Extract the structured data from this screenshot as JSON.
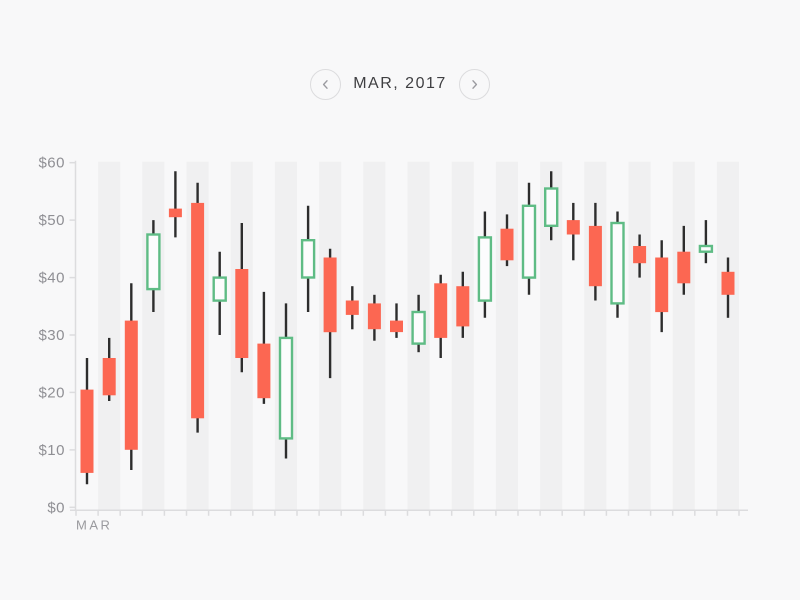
{
  "header": {
    "title": "MAR, 2017",
    "prev_icon": "chevron-left",
    "next_icon": "chevron-right"
  },
  "chart_data": {
    "type": "candlestick",
    "title": "MAR, 2017",
    "xlabel": "MAR",
    "ylabel": "",
    "ylim": [
      0,
      60
    ],
    "y_tick_values": [
      0,
      10,
      20,
      30,
      40,
      50,
      60
    ],
    "y_tick_labels": [
      "$0",
      "$10",
      "$20",
      "$30",
      "$40",
      "$50",
      "$60"
    ],
    "x_axis_label": "MAR",
    "grid": "alternating-vertical-stripes",
    "legend": "none",
    "candles": [
      {
        "open": 20.5,
        "high": 26,
        "low": 4,
        "close": 6
      },
      {
        "open": 26,
        "high": 29.5,
        "low": 18.5,
        "close": 19.5
      },
      {
        "open": 32.5,
        "high": 39,
        "low": 6.5,
        "close": 10
      },
      {
        "open": 38,
        "high": 50,
        "low": 34,
        "close": 47.5
      },
      {
        "open": 52,
        "high": 58.5,
        "low": 47,
        "close": 50.5
      },
      {
        "open": 53,
        "high": 56.5,
        "low": 13,
        "close": 15.5
      },
      {
        "open": 36,
        "high": 44.5,
        "low": 30,
        "close": 40
      },
      {
        "open": 41.5,
        "high": 49.5,
        "low": 23.5,
        "close": 26
      },
      {
        "open": 28.5,
        "high": 37.5,
        "low": 18,
        "close": 19
      },
      {
        "open": 12,
        "high": 35.5,
        "low": 8.5,
        "close": 29.5
      },
      {
        "open": 40,
        "high": 52.5,
        "low": 34,
        "close": 46.5
      },
      {
        "open": 43.5,
        "high": 45,
        "low": 22.5,
        "close": 30.5
      },
      {
        "open": 36,
        "high": 38.5,
        "low": 31,
        "close": 33.5
      },
      {
        "open": 35.5,
        "high": 37,
        "low": 29,
        "close": 31
      },
      {
        "open": 32.5,
        "high": 35.5,
        "low": 29.5,
        "close": 30.5
      },
      {
        "open": 28.5,
        "high": 37,
        "low": 27,
        "close": 34
      },
      {
        "open": 39,
        "high": 40.5,
        "low": 26,
        "close": 29.5
      },
      {
        "open": 38.5,
        "high": 41,
        "low": 29.5,
        "close": 31.5
      },
      {
        "open": 36,
        "high": 51.5,
        "low": 33,
        "close": 47
      },
      {
        "open": 48.5,
        "high": 51,
        "low": 42,
        "close": 43
      },
      {
        "open": 40,
        "high": 56.5,
        "low": 37,
        "close": 52.5
      },
      {
        "open": 49,
        "high": 58.5,
        "low": 46.5,
        "close": 55.5
      },
      {
        "open": 50,
        "high": 53,
        "low": 43,
        "close": 47.5
      },
      {
        "open": 49,
        "high": 53,
        "low": 36,
        "close": 38.5
      },
      {
        "open": 35.5,
        "high": 51.5,
        "low": 33,
        "close": 49.5
      },
      {
        "open": 45.5,
        "high": 47.5,
        "low": 40,
        "close": 42.5
      },
      {
        "open": 43.5,
        "high": 46.5,
        "low": 30.5,
        "close": 34
      },
      {
        "open": 44.5,
        "high": 49,
        "low": 37,
        "close": 39
      },
      {
        "open": 44.5,
        "high": 50,
        "low": 42.5,
        "close": 45.5
      },
      {
        "open": 41,
        "high": 43.5,
        "low": 33,
        "close": 37
      }
    ],
    "colors": {
      "bullish_stroke": "#5fbc85",
      "bullish_fill": "#fcfcfd",
      "bearish_fill": "#fc6752",
      "wick": "#2d2d2d",
      "stripe": "#f0f0f1",
      "axis": "#dcdcde",
      "tick_label": "#8f8f94",
      "month_label": "#9a9a9e",
      "background": "#f8f8f9"
    }
  }
}
